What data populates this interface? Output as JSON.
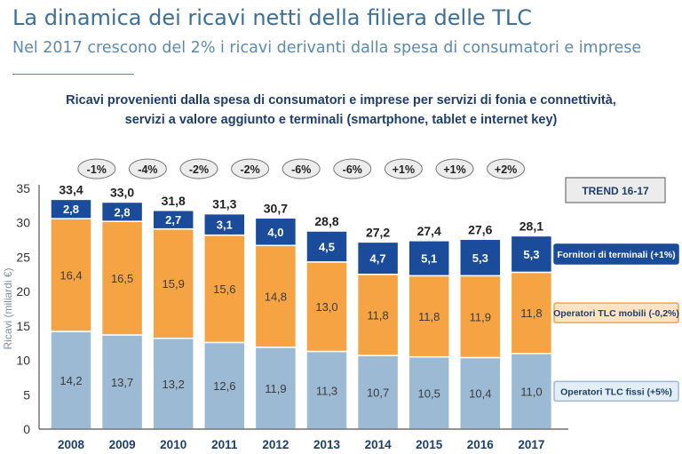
{
  "header": {
    "title": "La dinamica dei ricavi netti della filiera delle TLC",
    "subtitle": "Nel 2017 crescono del 2% i ricavi derivanti dalla spesa di consumatori e imprese"
  },
  "chart_data": {
    "type": "bar",
    "stacked": true,
    "title_lines": [
      "Ricavi provenienti dalla spesa di consumatori e imprese per servizi di fonia e connettività,",
      "servizi a valore aggiunto e terminali (smartphone, tablet e internet key)"
    ],
    "ylabel": "Ricavi (miliardi €)",
    "ylim": [
      0,
      35
    ],
    "yticks": [
      0,
      5,
      10,
      15,
      20,
      25,
      30,
      35
    ],
    "grid": false,
    "categories": [
      "2008",
      "2009",
      "2010",
      "2011",
      "2012",
      "2013",
      "2014",
      "2015",
      "2016",
      "2017"
    ],
    "series": [
      {
        "key": "fissi",
        "values": [
          14.2,
          13.7,
          13.2,
          12.6,
          11.9,
          11.3,
          10.7,
          10.5,
          10.4,
          11.0
        ],
        "labels": [
          "14,2",
          "13,7",
          "13,2",
          "12,6",
          "11,9",
          "11,3",
          "10,7",
          "10,5",
          "10,4",
          "11,0"
        ],
        "color": "#9dbad5"
      },
      {
        "key": "mobili",
        "values": [
          16.4,
          16.5,
          15.9,
          15.6,
          14.8,
          13.0,
          11.8,
          11.8,
          11.9,
          11.8
        ],
        "labels": [
          "16,4",
          "16,5",
          "15,9",
          "15,6",
          "14,8",
          "13,0",
          "11,8",
          "11,8",
          "11,9",
          "11,8"
        ],
        "color": "#f6a443"
      },
      {
        "key": "terminali",
        "values": [
          2.8,
          2.8,
          2.7,
          3.1,
          4.0,
          4.5,
          4.7,
          5.1,
          5.3,
          5.3
        ],
        "labels": [
          "2,8",
          "2,8",
          "2,7",
          "3,1",
          "4,0",
          "4,5",
          "4,7",
          "5,1",
          "5,3",
          "5,3"
        ],
        "color": "#1a4c9b"
      }
    ],
    "totals": [
      33.4,
      33.0,
      31.8,
      31.3,
      30.7,
      28.8,
      27.2,
      27.4,
      27.6,
      28.1
    ],
    "total_labels": [
      "33,4",
      "33,0",
      "31,8",
      "31,3",
      "30,7",
      "28,8",
      "27,2",
      "27,4",
      "27,6",
      "28,1"
    ],
    "changes": [
      "-1%",
      "-4%",
      "-2%",
      "-2%",
      "-6%",
      "-6%",
      "+1%",
      "+1%",
      "+2%"
    ],
    "trend_box": "TREND 16-17",
    "legend": [
      {
        "label": "Fornitori di terminali (+1%)",
        "color": "#1a4c9b",
        "border": "#1a4c9b"
      },
      {
        "label": "Operatori TLC mobili (-0,2%)",
        "color": "#fde3c4",
        "border": "#f6a443"
      },
      {
        "label": "Operatori TLC fissi (+5%)",
        "color": "#e3edf6",
        "border": "#9dbad5"
      }
    ]
  }
}
